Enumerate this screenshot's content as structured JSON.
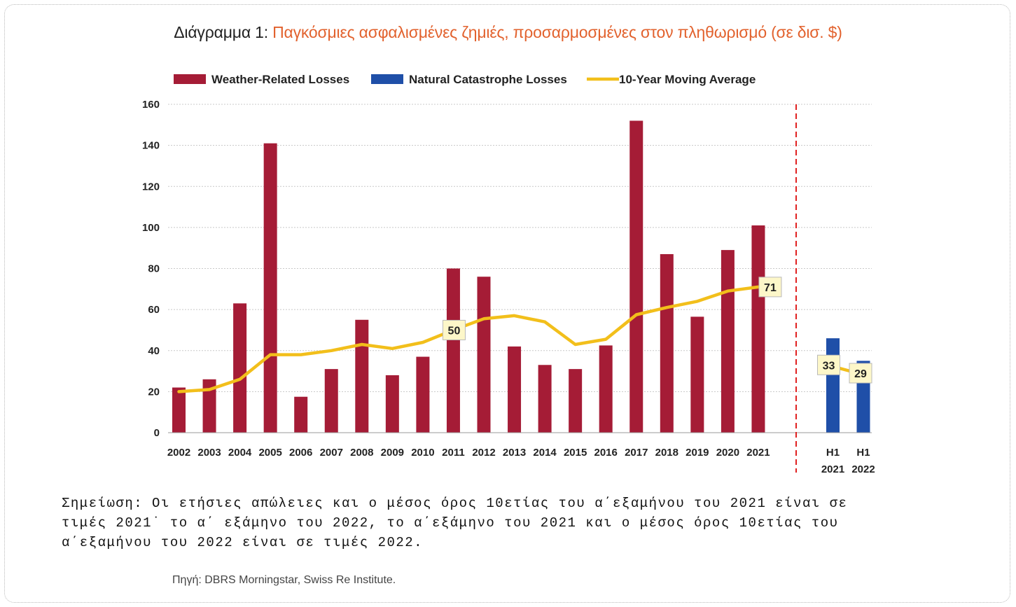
{
  "title": {
    "prefix": "Διάγραμμα 1: ",
    "main": "Παγκόσμιες ασφαλισμένες ζημιές, προσαρμοσμένες στον πληθωρισμό (σε δισ. $)"
  },
  "note": "Σημείωση: Οι ετήσιες απώλειες και ο μέσος όρος 10ετίας του α΄εξαμήνου του 2021 είναι σε\nτιμές 2021˙ το α΄ εξάμηνο του 2022, το α΄εξάμηνο του 2021 και ο μέσος όρος 10ετίας του\nα΄εξαμήνου του 2022 είναι σε τιμές 2022.",
  "source": "Πηγή: DBRS Morningstar, Swiss Re Institute.",
  "chart_data": {
    "type": "bar",
    "ylim": [
      0,
      160
    ],
    "yticks": [
      "0",
      "20",
      "40",
      "60",
      "80",
      "100",
      "120",
      "140",
      "160"
    ],
    "grid": true,
    "legend_position": "top",
    "colors": {
      "weather": "#a51c36",
      "natcat": "#1f4fa8",
      "average": "#f2bf1b",
      "divider": "#e02020"
    },
    "legend": [
      {
        "label": "Weather-Related Losses",
        "color": "#a51c36",
        "kind": "box"
      },
      {
        "label": "Natural Catastrophe Losses",
        "color": "#1f4fa8",
        "kind": "box"
      },
      {
        "label": "10-Year Moving Average",
        "color": "#f2bf1b",
        "kind": "line"
      }
    ],
    "categories": [
      "2002",
      "2003",
      "2004",
      "2005",
      "2006",
      "2007",
      "2008",
      "2009",
      "2010",
      "2011",
      "2012",
      "2013",
      "2014",
      "2015",
      "2016",
      "2017",
      "2018",
      "2019",
      "2020",
      "2021"
    ],
    "series": [
      {
        "name": "Weather-Related Losses",
        "values": [
          22,
          26,
          63,
          141,
          17.5,
          31,
          55,
          28,
          37,
          80,
          76,
          42,
          33,
          31,
          42.5,
          152,
          87,
          56.5,
          89,
          101
        ]
      },
      {
        "name": "10-Year Moving Average",
        "values": [
          20,
          21,
          26,
          38,
          38,
          40,
          43,
          41,
          44,
          50,
          55.5,
          57,
          54,
          43,
          45.5,
          57.5,
          61,
          64,
          69,
          71
        ]
      }
    ],
    "h1": {
      "categories": [
        [
          "H1",
          "2021"
        ],
        [
          "H1",
          "2022"
        ]
      ],
      "natcat_values": [
        46,
        35
      ],
      "average_values": [
        33,
        29
      ]
    },
    "data_labels": [
      {
        "series": "10-Year Moving Average",
        "category": "2011",
        "text": "50"
      },
      {
        "series": "10-Year Moving Average",
        "category": "2021",
        "text": "71"
      },
      {
        "series": "10-Year Moving Average",
        "category": "H1 2021",
        "text": "33"
      },
      {
        "series": "10-Year Moving Average",
        "category": "H1 2022",
        "text": "29"
      }
    ]
  }
}
